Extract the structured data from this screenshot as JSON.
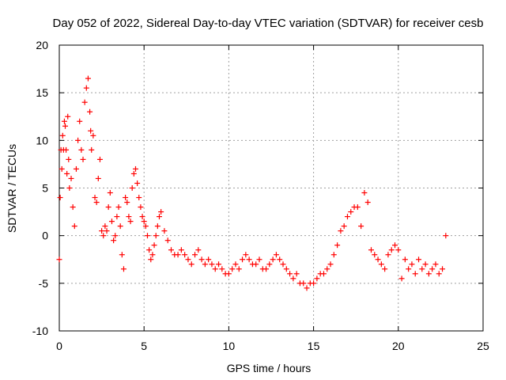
{
  "chart_data": {
    "type": "scatter",
    "title": "Day 052 of 2022, Sidereal Day-to-day VTEC variation (SDTVAR) for receiver cesb",
    "xlabel": "GPS time / hours",
    "ylabel": "SDTVAR / TECUs",
    "xlim": [
      0,
      25
    ],
    "ylim": [
      -10,
      20
    ],
    "xticks": [
      0,
      5,
      10,
      15,
      20,
      25
    ],
    "yticks": [
      -10,
      -5,
      0,
      5,
      10,
      15,
      20
    ],
    "grid": true,
    "marker": "+",
    "colors": {
      "series": "#ff0000",
      "grid": "#a0a0a0",
      "axes": "#000000"
    },
    "series": [
      {
        "name": "SDTVAR",
        "x": [
          0.0,
          0.05,
          0.1,
          0.15,
          0.2,
          0.25,
          0.3,
          0.35,
          0.4,
          0.45,
          0.5,
          0.55,
          0.6,
          0.7,
          0.8,
          0.9,
          1.0,
          1.1,
          1.2,
          1.3,
          1.4,
          1.5,
          1.6,
          1.7,
          1.8,
          1.85,
          1.9,
          2.0,
          2.1,
          2.2,
          2.3,
          2.4,
          2.5,
          2.6,
          2.7,
          2.8,
          2.9,
          3.0,
          3.1,
          3.2,
          3.3,
          3.4,
          3.5,
          3.6,
          3.7,
          3.8,
          3.9,
          4.0,
          4.1,
          4.2,
          4.3,
          4.4,
          4.5,
          4.6,
          4.7,
          4.8,
          4.9,
          5.0,
          5.1,
          5.2,
          5.3,
          5.4,
          5.5,
          5.6,
          5.7,
          5.8,
          5.9,
          6.0,
          6.2,
          6.4,
          6.6,
          6.8,
          7.0,
          7.2,
          7.4,
          7.6,
          7.8,
          8.0,
          8.2,
          8.4,
          8.6,
          8.8,
          9.0,
          9.2,
          9.4,
          9.6,
          9.8,
          10.0,
          10.2,
          10.4,
          10.6,
          10.8,
          11.0,
          11.2,
          11.4,
          11.6,
          11.8,
          12.0,
          12.2,
          12.4,
          12.6,
          12.8,
          13.0,
          13.2,
          13.4,
          13.6,
          13.8,
          14.0,
          14.2,
          14.4,
          14.6,
          14.8,
          15.0,
          15.2,
          15.4,
          15.6,
          15.8,
          16.0,
          16.2,
          16.4,
          16.6,
          16.8,
          17.0,
          17.2,
          17.4,
          17.6,
          17.8,
          18.0,
          18.2,
          18.4,
          18.6,
          18.8,
          19.0,
          19.2,
          19.4,
          19.6,
          19.8,
          20.0,
          20.2,
          20.4,
          20.6,
          20.8,
          21.0,
          21.2,
          21.4,
          21.6,
          21.8,
          22.0,
          22.2,
          22.4,
          22.6,
          22.8
        ],
        "y": [
          -2.5,
          4.0,
          9.0,
          7.0,
          10.5,
          9.0,
          12.0,
          11.5,
          9.0,
          6.5,
          12.5,
          8.0,
          5.0,
          6.0,
          3.0,
          1.0,
          7.0,
          10.0,
          12.0,
          9.0,
          8.0,
          14.0,
          15.5,
          16.5,
          13.0,
          11.0,
          9.0,
          10.5,
          4.0,
          3.5,
          6.0,
          8.0,
          0.5,
          0.0,
          1.0,
          0.5,
          3.0,
          4.5,
          1.5,
          -0.5,
          0.0,
          2.0,
          3.0,
          1.0,
          -2.0,
          -3.5,
          4.0,
          3.5,
          2.0,
          1.5,
          5.0,
          6.5,
          7.0,
          5.5,
          4.0,
          3.0,
          2.0,
          1.5,
          1.0,
          0.0,
          -1.5,
          -2.5,
          -2.0,
          -1.0,
          0.0,
          1.0,
          2.0,
          2.5,
          0.5,
          -0.5,
          -1.5,
          -2.0,
          -2.0,
          -1.5,
          -2.0,
          -2.5,
          -3.0,
          -2.0,
          -1.5,
          -2.5,
          -3.0,
          -2.5,
          -3.0,
          -3.5,
          -3.0,
          -3.5,
          -4.0,
          -4.0,
          -3.5,
          -3.0,
          -3.5,
          -2.5,
          -2.0,
          -2.5,
          -3.0,
          -3.0,
          -2.5,
          -3.5,
          -3.5,
          -3.0,
          -2.5,
          -2.0,
          -2.5,
          -3.0,
          -3.5,
          -4.0,
          -4.5,
          -4.0,
          -5.0,
          -5.0,
          -5.5,
          -5.0,
          -5.0,
          -4.5,
          -4.0,
          -4.0,
          -3.5,
          -3.0,
          -2.0,
          -1.0,
          0.5,
          1.0,
          2.0,
          2.5,
          3.0,
          3.0,
          1.0,
          4.5,
          3.5,
          -1.5,
          -2.0,
          -2.5,
          -3.0,
          -3.5,
          -2.0,
          -1.5,
          -1.0,
          -1.5,
          -4.5,
          -2.5,
          -3.5,
          -3.0,
          -4.0,
          -2.5,
          -3.5,
          -3.0,
          -4.0,
          -3.5,
          -3.0,
          -4.0,
          -3.5,
          0.0
        ]
      }
    ]
  }
}
